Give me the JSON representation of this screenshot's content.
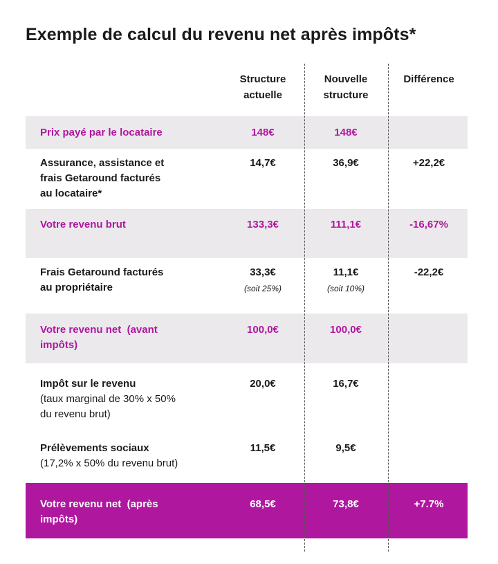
{
  "title": "Exemple de calcul du revenu net après impôts*",
  "colors": {
    "accent": "#b0179f",
    "band": "#ebe9ec",
    "text": "#1a1a1a",
    "white": "#ffffff"
  },
  "headers": {
    "current": [
      "Structure",
      "actuelle"
    ],
    "new": [
      "Nouvelle",
      "structure"
    ],
    "difference": "Différence"
  },
  "rows": {
    "price": {
      "label": "Prix payé par le locataire",
      "current": "148€",
      "new": "148€",
      "difference": ""
    },
    "insurance": {
      "label": [
        "Assurance, assistance et",
        "frais Getaround facturés",
        "au locataire*"
      ],
      "current": "14,7€",
      "new": "36,9€",
      "difference": "+22,2€"
    },
    "gross": {
      "label": "Votre revenu brut",
      "current": "133,3€",
      "new": "111,1€",
      "difference": "-16,67%"
    },
    "owner_fees": {
      "label": [
        "Frais Getaround facturés",
        "au propriétaire"
      ],
      "current": "33,3€",
      "current_note": "(soit 25%)",
      "new": "11,1€",
      "new_note": "(soit 10%)",
      "difference": "-22,2€"
    },
    "net_before": {
      "label": [
        "Votre revenu net  (avant",
        "impôts)"
      ],
      "current": "100,0€",
      "new": "100,0€",
      "difference": ""
    },
    "income_tax": {
      "label": "Impôt sur le revenu",
      "detail": [
        "(taux marginal de 30% x 50%",
        "du revenu brut)"
      ],
      "current": "20,0€",
      "new": "16,7€",
      "difference": ""
    },
    "social": {
      "label": "Prélèvements sociaux",
      "detail": "(17,2% x 50% du revenu brut)",
      "current": "11,5€",
      "new": "9,5€",
      "difference": ""
    },
    "net_after": {
      "label": [
        "Votre revenu net  (après",
        "impôts)"
      ],
      "current": "68,5€",
      "new": "73,8€",
      "difference": "+7.7%"
    }
  }
}
